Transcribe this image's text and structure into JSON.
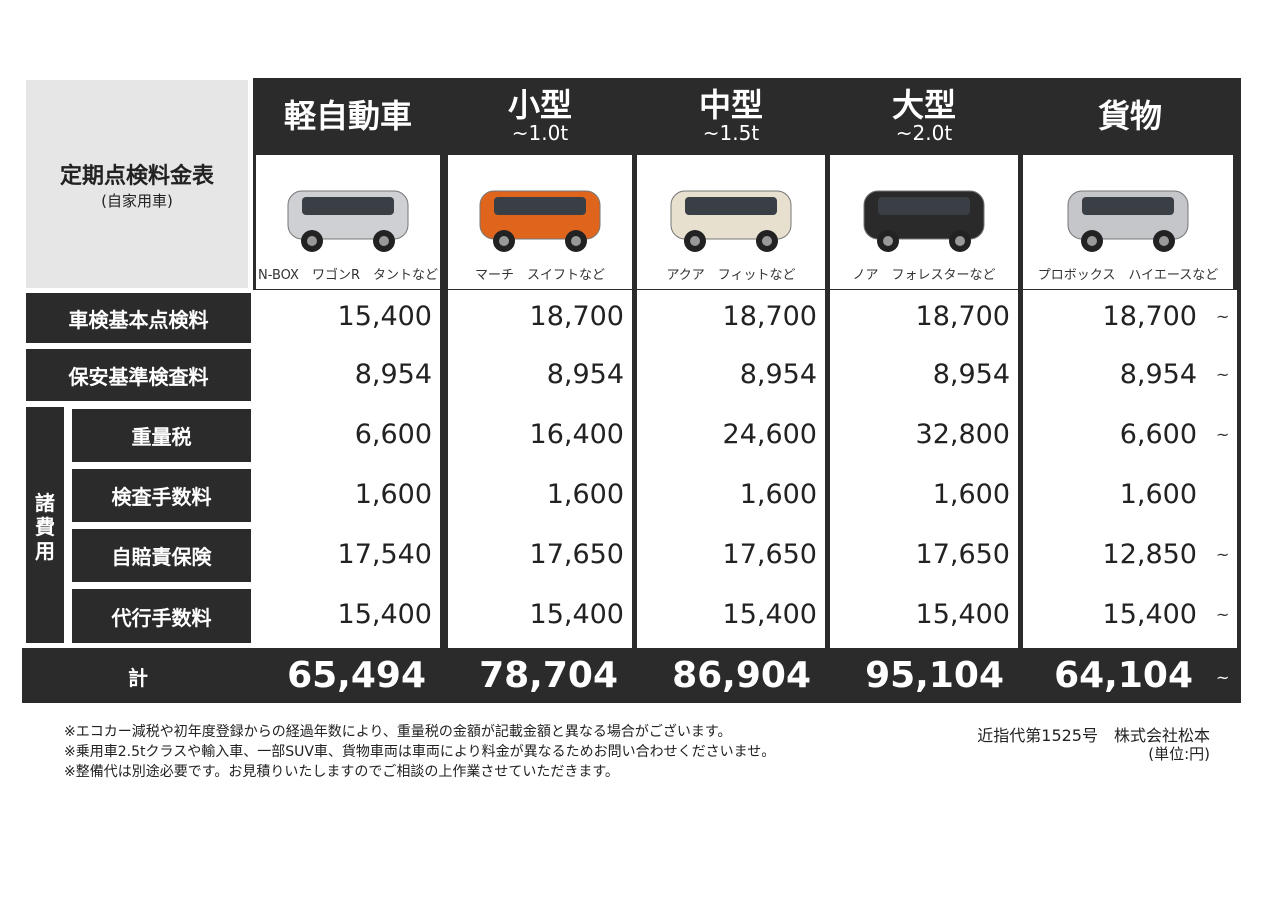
{
  "title": {
    "main": "定期点検料金表",
    "sub": "(自家用車)"
  },
  "columns": [
    {
      "name": "軽自動車",
      "sub": "",
      "models": "N-BOX　ワゴンR　タントなど",
      "icon": "kei-car-image"
    },
    {
      "name": "小型",
      "sub": "~1.0t",
      "models": "マーチ　スイフトなど",
      "icon": "compact-car-image"
    },
    {
      "name": "中型",
      "sub": "~1.5t",
      "models": "アクア　フィットなど",
      "icon": "mid-car-image"
    },
    {
      "name": "大型",
      "sub": "~2.0t",
      "models": "ノア　フォレスターなど",
      "icon": "large-car-image"
    },
    {
      "name": "貨物",
      "sub": "",
      "models": "プロボックス　ハイエースなど",
      "icon": "cargo-car-image"
    }
  ],
  "rows": [
    {
      "label": "車検基本点検料",
      "values": [
        "15,400",
        "18,700",
        "18,700",
        "18,700",
        "18,700"
      ],
      "tilde": "~"
    },
    {
      "label": "保安基準検査料",
      "values": [
        "8,954",
        "8,954",
        "8,954",
        "8,954",
        "8,954"
      ],
      "tilde": "~"
    },
    {
      "label": "重量税",
      "values": [
        "6,600",
        "16,400",
        "24,600",
        "32,800",
        "6,600"
      ],
      "tilde": "~"
    },
    {
      "label": "検査手数料",
      "values": [
        "1,600",
        "1,600",
        "1,600",
        "1,600",
        "1,600"
      ],
      "tilde": ""
    },
    {
      "label": "自賠責保険",
      "values": [
        "17,540",
        "17,650",
        "17,650",
        "17,650",
        "12,850"
      ],
      "tilde": "~"
    },
    {
      "label": "代行手数料",
      "values": [
        "15,400",
        "15,400",
        "15,400",
        "15,400",
        "15,400"
      ],
      "tilde": "~"
    }
  ],
  "group_label": [
    "諸",
    "費",
    "用"
  ],
  "total": {
    "label": "計",
    "values": [
      "65,494",
      "78,704",
      "86,904",
      "95,104",
      "64,104"
    ],
    "tilde": "~"
  },
  "notes": [
    "※エコカー減税や初年度登録からの経過年数により、重量税の金額が記載金額と異なる場合がございます。",
    "※乗用車2.5tクラスや輸入車、一部SUV車、貨物車両は車両により料金が異なるためお問い合わせくださいませ。",
    "※整備代は別途必要です。お見積りいたしますのでご相談の上作業させていただきます。"
  ],
  "company": "近指代第1525号　株式会社松本",
  "unit": "(単位:円)",
  "colors": {
    "dark": "#2b2b2b",
    "light": "#e6e6e6"
  }
}
